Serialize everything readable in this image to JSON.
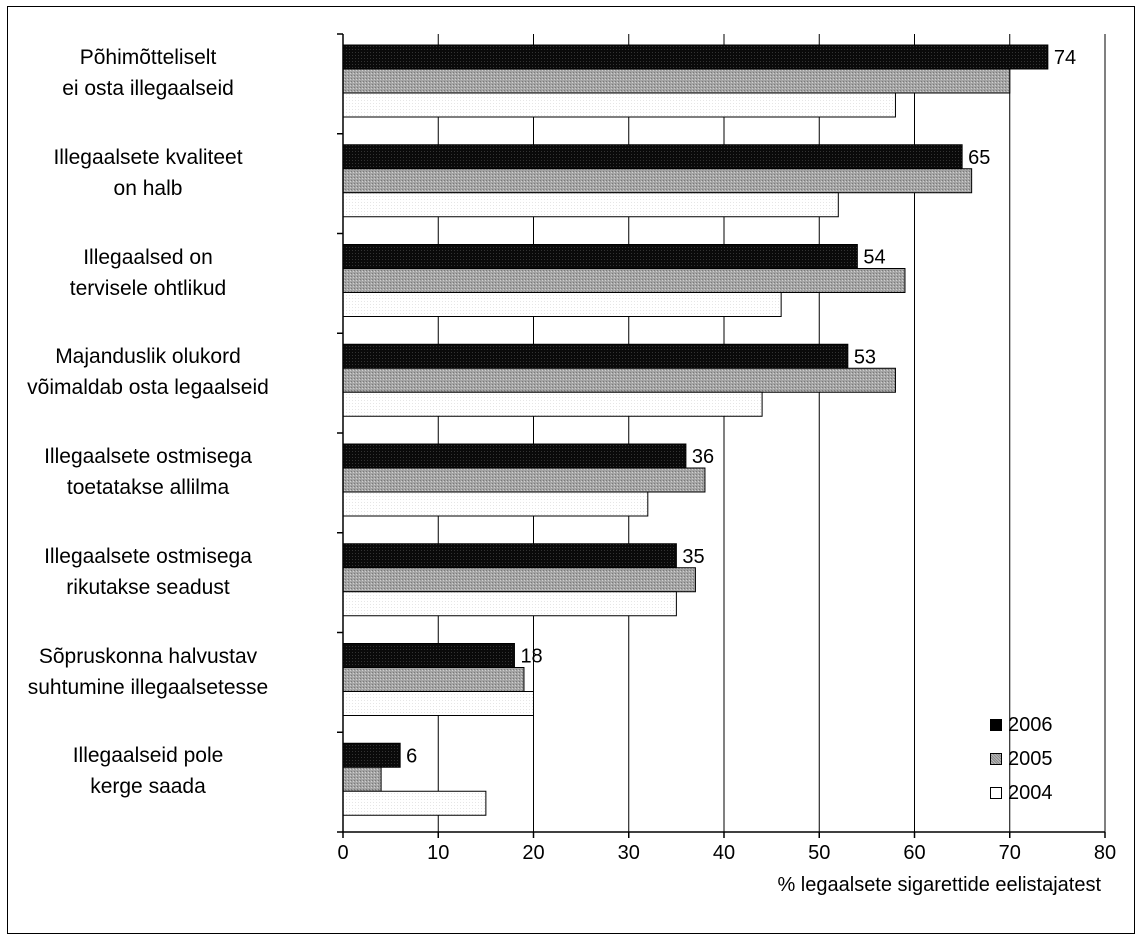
{
  "chart_data": {
    "type": "bar",
    "orientation": "horizontal",
    "categories": [
      [
        "Põhimõtteliselt",
        "ei osta illegaalseid"
      ],
      [
        "Illegaalsete kvaliteet",
        "on halb"
      ],
      [
        "Illegaalsed  on",
        "tervisele ohtlikud"
      ],
      [
        "Majanduslik olukord",
        "võimaldab osta legaalseid"
      ],
      [
        "Illegaalsete ostmisega",
        "toetatakse allilma"
      ],
      [
        "Illegaalsete ostmisega",
        "rikutakse seadust"
      ],
      [
        "Sõpruskonna halvustav",
        "suhtumine illegaalsetesse"
      ],
      [
        "Illegaalseid pole",
        "kerge saada"
      ]
    ],
    "series": [
      {
        "name": "2006",
        "values": [
          74,
          65,
          54,
          53,
          36,
          35,
          18,
          6
        ],
        "color": "#000000",
        "show_labels": true
      },
      {
        "name": "2005",
        "values": [
          70,
          66,
          59,
          58,
          38,
          37,
          19,
          4
        ],
        "color": "#a8a8a8",
        "show_labels": false
      },
      {
        "name": "2004",
        "values": [
          58,
          52,
          46,
          44,
          32,
          35,
          20,
          15
        ],
        "color": "#ffffff",
        "show_labels": false
      }
    ],
    "xlabel": "% legaalsete sigarettide eelistajatest",
    "xlim": [
      0,
      80
    ],
    "xticks": [
      0,
      10,
      20,
      30,
      40,
      50,
      60,
      70,
      80
    ],
    "grid": true,
    "legend_position": "bottom-right"
  }
}
